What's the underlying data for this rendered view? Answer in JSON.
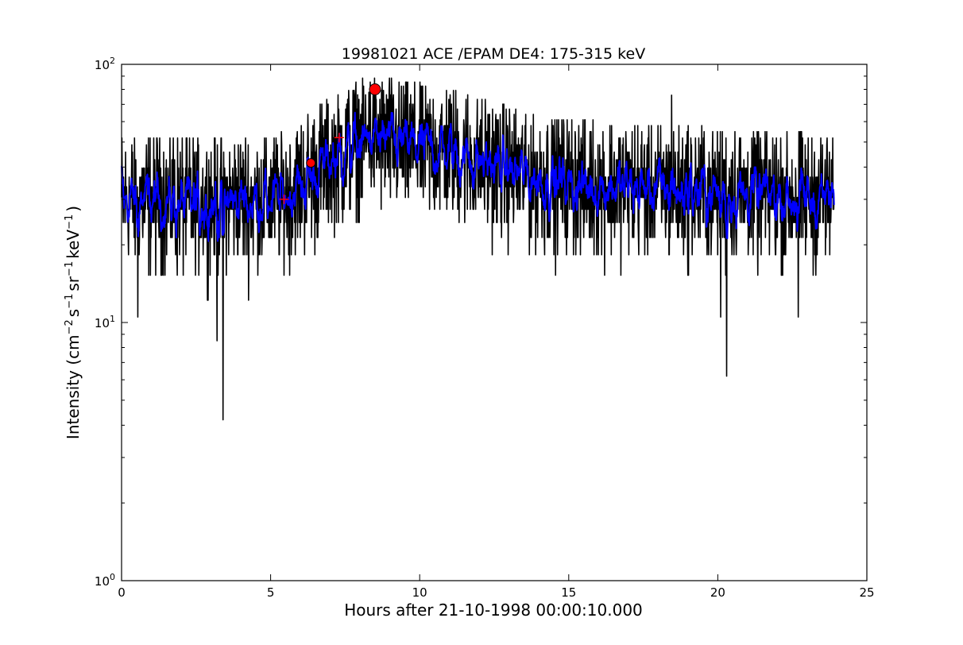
{
  "chart_data": {
    "type": "line",
    "title": "19981021 ACE /EPAM DE4: 175-315 keV",
    "xlabel": "Hours after 21-10-1998 00:00:10.000",
    "ylabel": {
      "prefix": "Intensity (cm",
      "sup1": "−2",
      "mid1": "s",
      "sup2": "−1",
      "mid2": "sr",
      "sup3": "−1",
      "mid3": "keV",
      "sup4": "−1",
      "suffix": ")"
    },
    "xlim": [
      0,
      25
    ],
    "ylim": [
      1,
      100
    ],
    "yscale": "log",
    "grid": false,
    "x_ticks": [
      {
        "value": 0,
        "label": "0"
      },
      {
        "value": 5,
        "label": "5"
      },
      {
        "value": 10,
        "label": "10"
      },
      {
        "value": 15,
        "label": "15"
      },
      {
        "value": 20,
        "label": "20"
      },
      {
        "value": 25,
        "label": "25"
      }
    ],
    "y_ticks": [
      {
        "value": 1,
        "base": "10",
        "exp": "0"
      },
      {
        "value": 10,
        "base": "10",
        "exp": "1"
      },
      {
        "value": 100,
        "base": "10",
        "exp": "2"
      }
    ],
    "raw_series": {
      "color": "#000000",
      "x_start": 0.0,
      "x_end": 23.9,
      "trend": [
        [
          0.0,
          30
        ],
        [
          1.0,
          30
        ],
        [
          2.0,
          29
        ],
        [
          3.0,
          29
        ],
        [
          4.0,
          30
        ],
        [
          5.0,
          30
        ],
        [
          5.5,
          31
        ],
        [
          6.0,
          34
        ],
        [
          6.5,
          38
        ],
        [
          7.0,
          42
        ],
        [
          7.5,
          46
        ],
        [
          8.0,
          50
        ],
        [
          8.5,
          51
        ],
        [
          9.0,
          50
        ],
        [
          10.0,
          48
        ],
        [
          11.0,
          46
        ],
        [
          12.0,
          42
        ],
        [
          13.0,
          39
        ],
        [
          14.0,
          36
        ],
        [
          16.0,
          34
        ],
        [
          18.0,
          33
        ],
        [
          20.0,
          32
        ],
        [
          22.0,
          31
        ],
        [
          23.9,
          30
        ]
      ],
      "dips": [
        {
          "x": 0.55,
          "y": 10.5
        },
        {
          "x": 3.2,
          "y": 8.5
        },
        {
          "x": 3.4,
          "y": 4.2
        },
        {
          "x": 20.3,
          "y": 6.2
        },
        {
          "x": 20.1,
          "y": 10.5
        },
        {
          "x": 22.7,
          "y": 10.5
        }
      ],
      "spikes": [
        {
          "x": 18.45,
          "y": 76
        },
        {
          "x": 8.3,
          "y": 78
        }
      ]
    },
    "smoothed_series": {
      "color": "#0000ff"
    },
    "markers": [
      {
        "type": "plus",
        "x": 5.45,
        "y": 30,
        "color": "#ff0000"
      },
      {
        "type": "circle",
        "x": 6.35,
        "y": 41.5,
        "color": "#ff0000"
      },
      {
        "type": "plus",
        "x": 7.3,
        "y": 52,
        "color": "#ff0000"
      },
      {
        "type": "circle",
        "x": 8.5,
        "y": 80,
        "color": "#ff0000"
      }
    ]
  }
}
